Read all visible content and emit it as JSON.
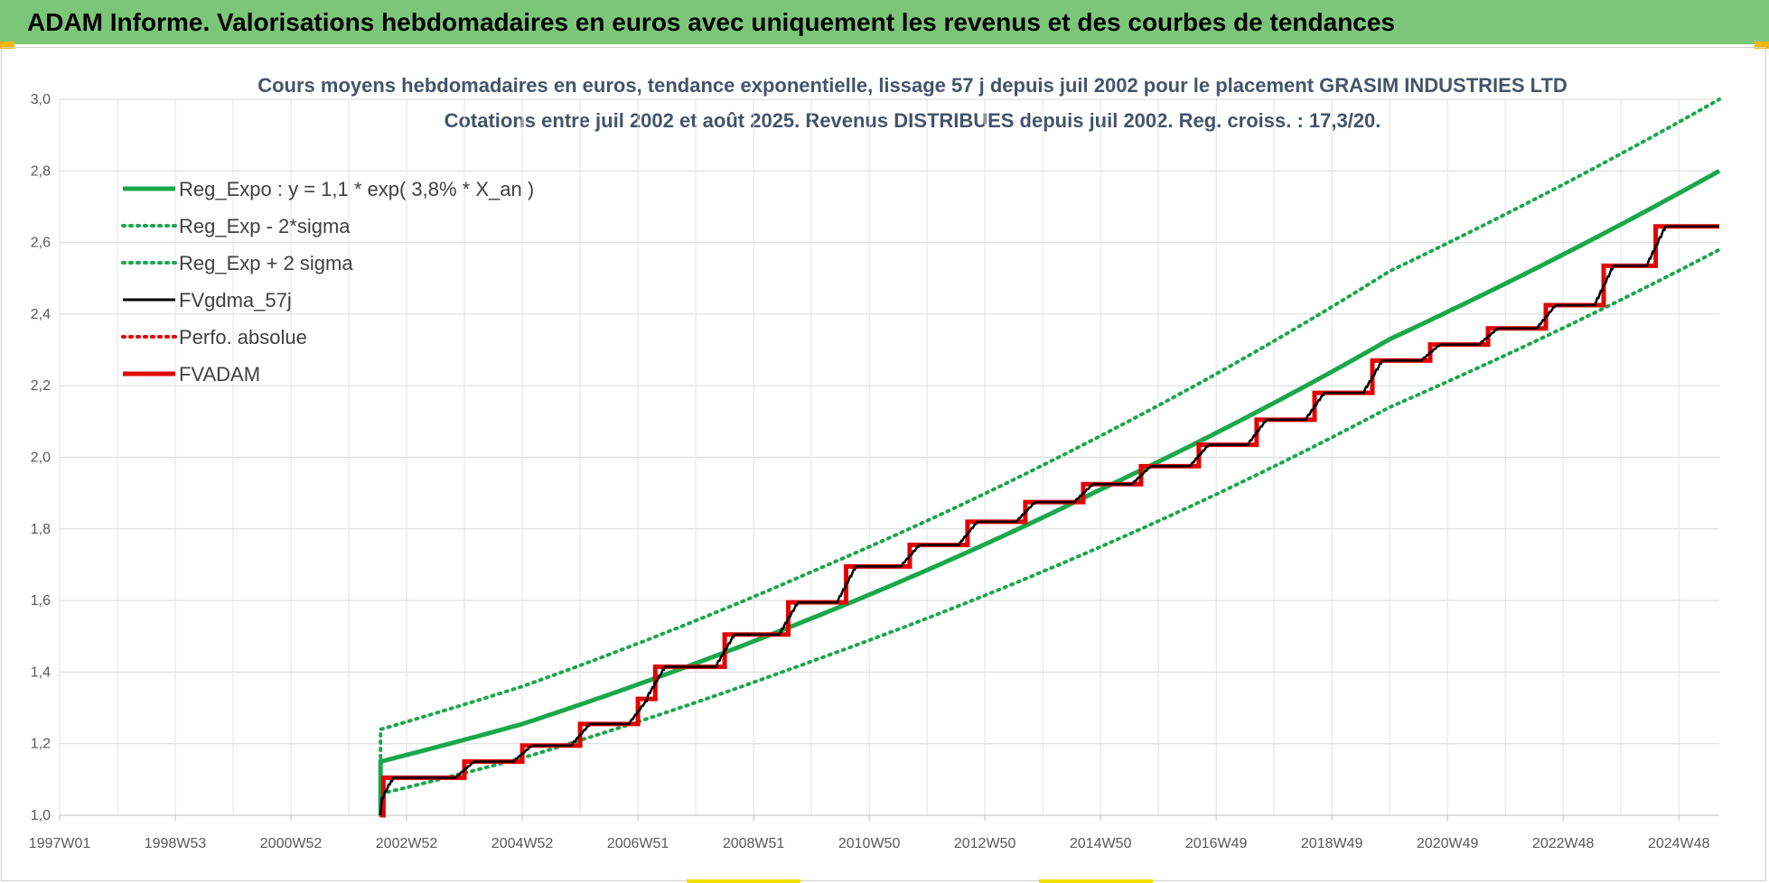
{
  "banner": {
    "title": "ADAM Informe. Valorisations hebdomadaires en euros avec uniquement les revenus et des courbes de tendances"
  },
  "colors": {
    "banner_bg": "#7cc67a",
    "reg": "#1aa84a",
    "fv": "#000000",
    "adam": "#e30000",
    "accent": "#f2b705"
  },
  "chart_data": {
    "type": "line",
    "title": "Cours moyens hebdomadaires en euros, tendance exponentielle, lissage 57 j depuis juil 2002 pour le placement GRASIM INDUSTRIES LTD",
    "subtitle": "Cotations entre juil 2002 et août 2025. Revenus DISTRIBUES depuis juil 2002. Reg. croiss. : 17,3/20.",
    "x_ticks": [
      "1997W01",
      "1998W53",
      "2000W52",
      "2002W52",
      "2004W52",
      "2006W51",
      "2008W51",
      "2010W50",
      "2012W50",
      "2014W50",
      "2016W49",
      "2018W49",
      "2020W49",
      "2022W48",
      "2024W48"
    ],
    "x_tick_years": [
      1997.0,
      1999.0,
      2001.0,
      2003.0,
      2005.0,
      2007.0,
      2009.0,
      2011.0,
      2013.0,
      2015.0,
      2017.0,
      2019.0,
      2021.0,
      2023.0,
      2025.0
    ],
    "xlim": [
      1997.0,
      2025.7
    ],
    "y_ticks": [
      "1,0",
      "1,2",
      "1,4",
      "1,6",
      "1,8",
      "2,0",
      "2,2",
      "2,4",
      "2,6",
      "2,8",
      "3,0"
    ],
    "ylim": [
      1.0,
      3.0
    ],
    "grid": true,
    "legend_position": "top-left",
    "legend": [
      {
        "label": "Reg_Expo : y = 1,1 * exp( 3,8% *  X_an )",
        "color": "#1aa84a",
        "style": "solid-thick"
      },
      {
        "label": "Reg_Exp - 2*sigma",
        "color": "#1aa84a",
        "style": "dotted"
      },
      {
        "label": "Reg_Exp + 2 sigma",
        "color": "#1aa84a",
        "style": "dotted"
      },
      {
        "label": "FVgdma_57j",
        "color": "#000000",
        "style": "solid"
      },
      {
        "label": "Perfo. absolue",
        "color": "#e30000",
        "style": "dotted"
      },
      {
        "label": "FVADAM",
        "color": "#e30000",
        "style": "solid-thick"
      }
    ],
    "series": [
      {
        "name": "Reg_Expo : y = 1,1 * exp( 3,8% *  X_an )",
        "start": 2002.55,
        "end": 2025.7,
        "points": [
          [
            2002.55,
            1.15
          ],
          [
            2005,
            1.255
          ],
          [
            2010,
            1.55
          ],
          [
            2015,
            1.91
          ],
          [
            2020,
            2.33
          ],
          [
            2025.7,
            2.8
          ]
        ]
      },
      {
        "name": "Reg_Exp - 2*sigma",
        "start": 2002.55,
        "end": 2025.7,
        "points": [
          [
            2002.55,
            1.06
          ],
          [
            2005,
            1.16
          ],
          [
            2010,
            1.43
          ],
          [
            2015,
            1.75
          ],
          [
            2020,
            2.14
          ],
          [
            2025.7,
            2.58
          ]
        ]
      },
      {
        "name": "Reg_Exp + 2 sigma",
        "start": 2002.55,
        "end": 2025.7,
        "points": [
          [
            2002.55,
            1.24
          ],
          [
            2005,
            1.36
          ],
          [
            2010,
            1.68
          ],
          [
            2015,
            2.06
          ],
          [
            2020,
            2.52
          ],
          [
            2025.7,
            3.0
          ]
        ]
      },
      {
        "name": "FVADAM",
        "start": 2002.55,
        "start_value": 1.0,
        "steps": [
          [
            2002.6,
            1.105
          ],
          [
            2004.0,
            1.15
          ],
          [
            2005.0,
            1.195
          ],
          [
            2006.0,
            1.255
          ],
          [
            2007.0,
            1.325
          ],
          [
            2007.3,
            1.415
          ],
          [
            2008.5,
            1.505
          ],
          [
            2009.6,
            1.595
          ],
          [
            2010.6,
            1.695
          ],
          [
            2011.7,
            1.755
          ],
          [
            2012.7,
            1.82
          ],
          [
            2013.7,
            1.875
          ],
          [
            2014.7,
            1.925
          ],
          [
            2015.7,
            1.975
          ],
          [
            2016.7,
            2.035
          ],
          [
            2017.7,
            2.105
          ],
          [
            2018.7,
            2.18
          ],
          [
            2019.7,
            2.27
          ],
          [
            2020.7,
            2.315
          ],
          [
            2021.7,
            2.36
          ],
          [
            2022.7,
            2.425
          ],
          [
            2023.7,
            2.535
          ],
          [
            2024.6,
            2.645
          ]
        ],
        "end": 2025.7
      },
      {
        "name": "FVgdma_57j",
        "follows": "FVADAM",
        "smoothing_years": 0.3
      },
      {
        "name": "Perfo. absolue",
        "values": []
      }
    ]
  }
}
